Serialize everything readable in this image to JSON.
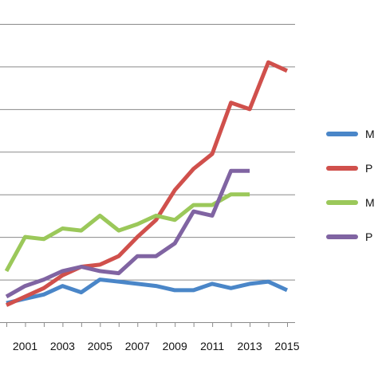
{
  "chart_data": {
    "type": "line",
    "title": "",
    "xlabel": "",
    "ylabel": "",
    "grid": true,
    "legend_position": "right",
    "x": [
      2000,
      2001,
      2002,
      2003,
      2004,
      2005,
      2006,
      2007,
      2008,
      2009,
      2010,
      2011,
      2012,
      2013,
      2014,
      2015
    ],
    "x_tick_labels": [
      "2001",
      "2003",
      "2005",
      "2007",
      "2009",
      "2011",
      "2013",
      "2015"
    ],
    "x_tick_values": [
      2001,
      2003,
      2005,
      2007,
      2009,
      2011,
      2013,
      2015
    ],
    "ylim": [
      0,
      7
    ],
    "series": [
      {
        "name": "M",
        "color": "#4A86C8",
        "values": [
          0.45,
          0.55,
          0.65,
          0.85,
          0.7,
          1.0,
          0.95,
          0.9,
          0.85,
          0.75,
          0.75,
          0.9,
          0.8,
          0.9,
          0.95,
          0.75
        ]
      },
      {
        "name": "P",
        "color": "#D0504C",
        "values": [
          0.4,
          0.6,
          0.8,
          1.1,
          1.3,
          1.35,
          1.55,
          2.0,
          2.4,
          3.1,
          3.6,
          3.95,
          5.15,
          5.0,
          6.1,
          5.9
        ]
      },
      {
        "name": "M",
        "color": "#9BC85A",
        "values": [
          1.2,
          2.0,
          1.95,
          2.2,
          2.15,
          2.5,
          2.15,
          2.3,
          2.5,
          2.4,
          2.75,
          2.75,
          3.0,
          3.0,
          null,
          null
        ]
      },
      {
        "name": "P",
        "color": "#8064A2",
        "values": [
          0.6,
          0.85,
          1.0,
          1.2,
          1.3,
          1.2,
          1.15,
          1.55,
          1.55,
          1.85,
          2.6,
          2.5,
          3.55,
          3.55,
          null,
          null
        ]
      }
    ]
  }
}
